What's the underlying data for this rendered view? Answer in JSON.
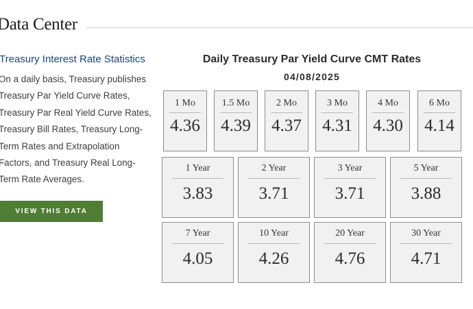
{
  "header": {
    "title": "Data Center"
  },
  "sidebar": {
    "link": "Treasury Interest Rate Statistics",
    "description_lines": [
      "On a daily basis, Treasury publishes",
      "Treasury Par Yield Curve Rates,",
      "Treasury Par Real Yield Curve Rates,",
      "Treasury Bill Rates, Treasury Long-",
      "Term Rates and Extrapolation",
      "Factors, and Treasury Real Long-",
      "Term Rate Averages."
    ],
    "button": "VIEW THIS DATA"
  },
  "rates": {
    "title": "Daily Treasury Par Yield Curve CMT Rates",
    "date": "04/08/2025",
    "row1": [
      {
        "label": "1 Mo",
        "value": "4.36"
      },
      {
        "label": "1.5 Mo",
        "value": "4.39"
      },
      {
        "label": "2 Mo",
        "value": "4.37"
      },
      {
        "label": "3 Mo",
        "value": "4.31"
      },
      {
        "label": "4 Mo",
        "value": "4.30"
      },
      {
        "label": "6 Mo",
        "value": "4.14"
      }
    ],
    "row2": [
      {
        "label": "1 Year",
        "value": "3.83"
      },
      {
        "label": "2 Year",
        "value": "3.71"
      },
      {
        "label": "3 Year",
        "value": "3.71"
      },
      {
        "label": "5 Year",
        "value": "3.88"
      }
    ],
    "row3": [
      {
        "label": "7 Year",
        "value": "4.05"
      },
      {
        "label": "10 Year",
        "value": "4.26"
      },
      {
        "label": "20 Year",
        "value": "4.76"
      },
      {
        "label": "30 Year",
        "value": "4.71"
      }
    ]
  }
}
